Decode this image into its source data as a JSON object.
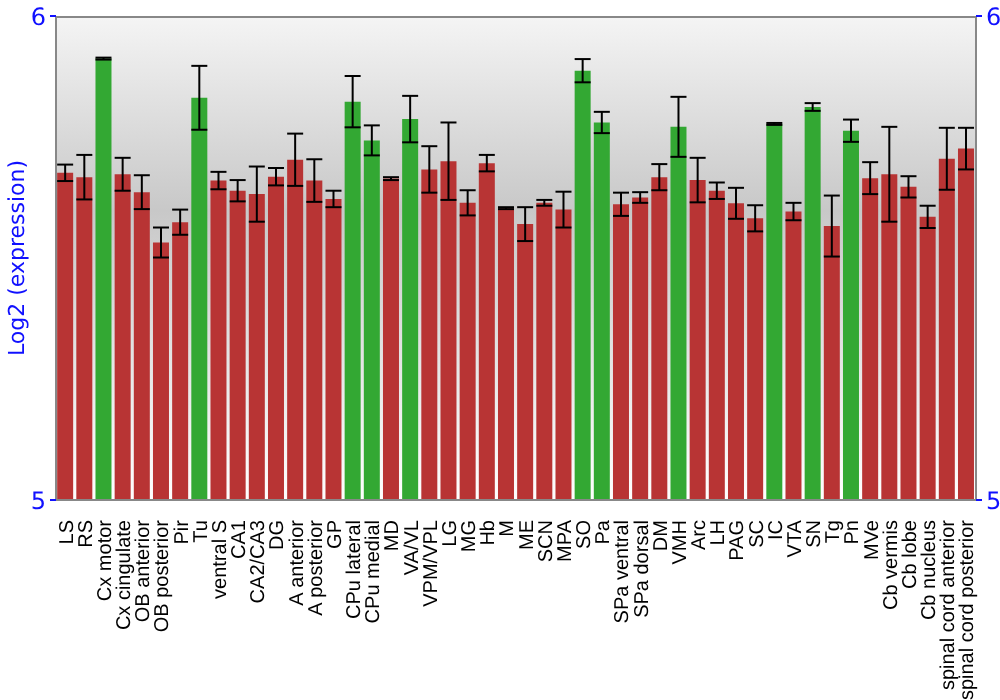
{
  "chart_data": {
    "type": "bar",
    "ylabel": "Log2 (expression)",
    "categories": [
      "LS",
      "RS",
      "Cx motor",
      "Cx cingulate",
      "OB anterior",
      "OB posterior",
      "Pir",
      "Tu",
      "ventral S",
      "CA1",
      "CA2/CA3",
      "DG",
      "A anterior",
      "A posterior",
      "GP",
      "CPu lateral",
      "CPu medial",
      "MD",
      "VA/VL",
      "VPM/VPL",
      "LG",
      "MG",
      "Hb",
      "M",
      "ME",
      "SCN",
      "MPA",
      "SO",
      "Pa",
      "SPa ventral",
      "SPa dorsal",
      "DM",
      "VMH",
      "Arc",
      "LH",
      "PAG",
      "SC",
      "IC",
      "VTA",
      "SN",
      "Tg",
      "Pn",
      "MVe",
      "Cb vermis",
      "Cb lobe",
      "Cb nucleus",
      "spinal cord anterior",
      "spinal cord posterior"
    ],
    "values": [
      5.676,
      5.667,
      5.912,
      5.673,
      5.636,
      5.532,
      5.574,
      5.831,
      5.66,
      5.639,
      5.632,
      5.668,
      5.703,
      5.66,
      5.622,
      5.823,
      5.743,
      5.664,
      5.787,
      5.683,
      5.7,
      5.614,
      5.696,
      5.603,
      5.57,
      5.614,
      5.6,
      5.887,
      5.78,
      5.611,
      5.625,
      5.667,
      5.771,
      5.661,
      5.639,
      5.613,
      5.582,
      5.777,
      5.596,
      5.812,
      5.566,
      5.763,
      5.665,
      5.673,
      5.647,
      5.585,
      5.705,
      5.726
    ],
    "errors": [
      0.017,
      0.046,
      0.002,
      0.034,
      0.035,
      0.031,
      0.026,
      0.066,
      0.018,
      0.022,
      0.057,
      0.018,
      0.054,
      0.044,
      0.017,
      0.053,
      0.031,
      0.003,
      0.048,
      0.048,
      0.08,
      0.026,
      0.017,
      0.002,
      0.035,
      0.006,
      0.037,
      0.024,
      0.022,
      0.024,
      0.011,
      0.027,
      0.062,
      0.046,
      0.017,
      0.032,
      0.027,
      0.002,
      0.018,
      0.008,
      0.063,
      0.023,
      0.033,
      0.098,
      0.022,
      0.023,
      0.064,
      0.043
    ],
    "colors": [
      "#b83434",
      "#b83434",
      "#33a833",
      "#b83434",
      "#b83434",
      "#b83434",
      "#b83434",
      "#33a833",
      "#b83434",
      "#b83434",
      "#b83434",
      "#b83434",
      "#b83434",
      "#b83434",
      "#b83434",
      "#33a833",
      "#33a833",
      "#b83434",
      "#33a833",
      "#b83434",
      "#b83434",
      "#b83434",
      "#b83434",
      "#b83434",
      "#b83434",
      "#b83434",
      "#b83434",
      "#33a833",
      "#33a833",
      "#b83434",
      "#b83434",
      "#b83434",
      "#33a833",
      "#b83434",
      "#b83434",
      "#b83434",
      "#b83434",
      "#33a833",
      "#b83434",
      "#33a833",
      "#b83434",
      "#33a833",
      "#b83434",
      "#b83434",
      "#b83434",
      "#b83434",
      "#b83434",
      "#b83434"
    ],
    "ylim": [
      5,
      6
    ],
    "yticks": [
      5,
      6
    ],
    "y2lim": [
      5,
      6
    ],
    "y2ticks": [
      5,
      6
    ],
    "grid": false,
    "legend": false
  }
}
